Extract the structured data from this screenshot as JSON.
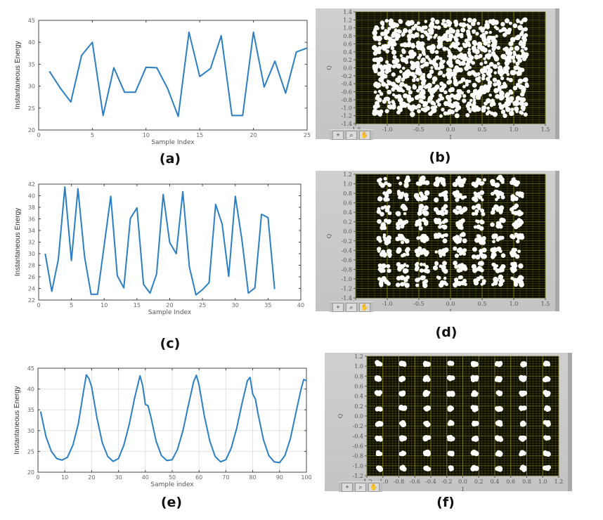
{
  "captions": {
    "a": "(a)",
    "b": "(b)",
    "c": "(c)",
    "d": "(d)",
    "e": "(e)",
    "f": "(f)"
  },
  "colors": {
    "line": "#2a7fc4",
    "plot_bg": "#0a0a00",
    "grid_major": "#7a7a10",
    "grid_minor": "#3b3b08",
    "dot": "#ffffff",
    "panel": "#c8c8c8"
  },
  "labview_tools": [
    "+",
    "⌕",
    "✋"
  ],
  "chart_data": [
    {
      "id": "a",
      "type": "line",
      "title": "",
      "xlabel": "Sample Index",
      "ylabel": "Instantaneous Energy",
      "xlim": [
        0,
        25
      ],
      "ylim": [
        20,
        45
      ],
      "xticks": [
        0,
        5,
        10,
        15,
        20,
        25
      ],
      "yticks": [
        20,
        25,
        30,
        35,
        40,
        45
      ],
      "grid": false,
      "x": [
        1,
        2,
        3,
        4,
        5,
        6,
        7,
        8,
        9,
        10,
        11,
        12,
        13,
        14,
        15,
        16,
        17,
        18,
        19,
        20,
        21,
        22,
        23,
        24,
        25
      ],
      "values": [
        33.4,
        29.6,
        26.4,
        37.0,
        40.0,
        23.3,
        34.2,
        28.6,
        28.6,
        34.3,
        34.2,
        29.5,
        23.1,
        42.3,
        32.2,
        34.0,
        41.5,
        23.3,
        23.3,
        42.3,
        29.8,
        35.7,
        28.4,
        37.8,
        38.7
      ]
    },
    {
      "id": "b",
      "type": "scatter",
      "title": "",
      "xlabel": "I",
      "ylabel": "Q",
      "xlim": [
        -1.5,
        1.5
      ],
      "ylim": [
        -1.4,
        1.4
      ],
      "xticks": [
        -1.5,
        -1.0,
        -0.5,
        0.0,
        0.5,
        1.0,
        1.5
      ],
      "yticks": [
        -1.4,
        -1.2,
        -1.0,
        -0.8,
        -0.6,
        -0.4,
        -0.2,
        0.0,
        0.2,
        0.4,
        0.6,
        0.8,
        1.0,
        1.2,
        1.4
      ],
      "grid": true,
      "constellation": {
        "levels_i": [
          -1.05,
          -0.75,
          -0.45,
          -0.15,
          0.15,
          0.45,
          0.75,
          1.05
        ],
        "levels_q": [
          -1.05,
          -0.75,
          -0.45,
          -0.15,
          0.15,
          0.45,
          0.75,
          1.05
        ],
        "spread": 0.16,
        "points_per_symbol": 14,
        "seed": 11
      }
    },
    {
      "id": "c",
      "type": "line",
      "title": "",
      "xlabel": "Sample Index",
      "ylabel": "Instantaneous Energy",
      "xlim": [
        0,
        40
      ],
      "ylim": [
        22,
        42
      ],
      "xticks": [
        0,
        5,
        10,
        15,
        20,
        25,
        30,
        35,
        40
      ],
      "yticks": [
        22,
        24,
        26,
        28,
        30,
        32,
        34,
        36,
        38,
        40,
        42
      ],
      "grid": false,
      "x": [
        1,
        2,
        3,
        4,
        5,
        6,
        7,
        8,
        9,
        10,
        11,
        12,
        13,
        14,
        15,
        16,
        17,
        18,
        19,
        20,
        21,
        22,
        23,
        24,
        25,
        26,
        27,
        28,
        29,
        30,
        31,
        32,
        33,
        34,
        35,
        36
      ],
      "values": [
        30.0,
        23.5,
        29.0,
        41.5,
        28.8,
        41.2,
        29.5,
        23.0,
        23.0,
        31.5,
        39.9,
        26.2,
        24.1,
        36.1,
        37.9,
        24.7,
        23.2,
        26.5,
        40.2,
        31.9,
        30.0,
        40.7,
        27.7,
        22.9,
        23.8,
        25.0,
        38.5,
        35.1,
        26.1,
        39.9,
        32.5,
        23.2,
        24.1,
        36.8,
        36.2,
        23.9
      ]
    },
    {
      "id": "d",
      "type": "scatter",
      "title": "",
      "xlabel": "I",
      "ylabel": "Q",
      "xlim": [
        -1.5,
        1.5
      ],
      "ylim": [
        -1.4,
        1.2
      ],
      "xticks": [
        -1.5,
        -1.0,
        -0.5,
        0.0,
        0.5,
        1.0,
        1.5
      ],
      "yticks": [
        -1.4,
        -1.2,
        -1.0,
        -0.8,
        -0.6,
        -0.4,
        -0.2,
        0.0,
        0.2,
        0.4,
        0.6,
        0.8,
        1.0,
        1.2
      ],
      "grid": true,
      "constellation": {
        "levels_i": [
          -1.05,
          -0.75,
          -0.45,
          -0.15,
          0.15,
          0.45,
          0.75,
          1.05
        ],
        "levels_q": [
          -1.05,
          -0.75,
          -0.45,
          -0.15,
          0.15,
          0.45,
          0.75,
          1.05
        ],
        "spread": 0.09,
        "points_per_symbol": 10,
        "seed": 23
      }
    },
    {
      "id": "e",
      "type": "line",
      "title": "",
      "xlabel": "Sample index",
      "ylabel": "Instantaneous Energy",
      "xlim": [
        0,
        100
      ],
      "ylim": [
        20,
        45
      ],
      "xticks": [
        0,
        10,
        20,
        30,
        40,
        50,
        60,
        70,
        80,
        90,
        100
      ],
      "yticks": [
        20,
        25,
        30,
        35,
        40,
        45
      ],
      "grid": true,
      "x": [
        1,
        3,
        5,
        7,
        9,
        11,
        13,
        15,
        17,
        18,
        19,
        20,
        22,
        24,
        26,
        28,
        30,
        32,
        34,
        36,
        38,
        39,
        40,
        41,
        42,
        44,
        46,
        48,
        50,
        52,
        54,
        56,
        58,
        59,
        60,
        62,
        64,
        66,
        68,
        70,
        72,
        74,
        76,
        78,
        79,
        80,
        81,
        82,
        84,
        86,
        88,
        90,
        92,
        94,
        96,
        98,
        99,
        100
      ],
      "values": [
        34.6,
        28.5,
        25.0,
        23.3,
        22.9,
        23.6,
        26.5,
        31.5,
        39.5,
        43.4,
        42.5,
        40.5,
        33.0,
        27.0,
        23.8,
        22.6,
        23.3,
        26.5,
        31.5,
        37.8,
        43.2,
        40.8,
        36.3,
        36.0,
        33.5,
        27.5,
        24.0,
        22.8,
        23.0,
        25.5,
        30.0,
        36.0,
        41.8,
        43.3,
        41.0,
        33.5,
        27.5,
        23.8,
        22.5,
        23.0,
        25.8,
        30.5,
        36.5,
        42.0,
        42.8,
        38.8,
        37.6,
        34.0,
        27.8,
        24.0,
        22.5,
        22.3,
        24.0,
        28.0,
        34.0,
        40.0,
        42.3,
        42.0
      ]
    },
    {
      "id": "f",
      "type": "scatter",
      "title": "",
      "xlabel": "I",
      "ylabel": "Q",
      "xlim": [
        -1.2,
        1.2
      ],
      "ylim": [
        -1.2,
        1.2
      ],
      "xticks": [
        -1.2,
        -1.0,
        -0.8,
        -0.6,
        -0.4,
        -0.2,
        0.0,
        0.2,
        0.4,
        0.6,
        0.8,
        1.0,
        1.2
      ],
      "yticks": [
        -1.2,
        -1.0,
        -0.8,
        -0.6,
        -0.4,
        -0.2,
        0.0,
        0.2,
        0.4,
        0.6,
        0.8,
        1.0,
        1.2
      ],
      "grid": true,
      "constellation": {
        "levels_i": [
          -1.05,
          -0.75,
          -0.45,
          -0.15,
          0.15,
          0.45,
          0.75,
          1.05
        ],
        "levels_q": [
          -1.05,
          -0.75,
          -0.45,
          -0.15,
          0.15,
          0.45,
          0.75,
          1.05
        ],
        "spread": 0.025,
        "points_per_symbol": 9,
        "seed": 5
      }
    }
  ]
}
